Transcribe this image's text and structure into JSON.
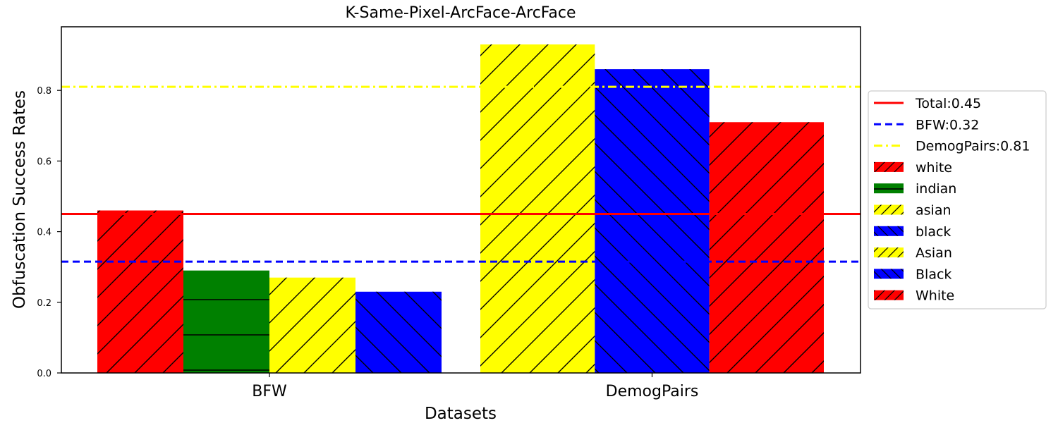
{
  "chart_data": {
    "type": "bar",
    "title": "K-Same-Pixel-ArcFace-ArcFace",
    "xlabel": "Datasets",
    "ylabel": "Obfuscation Success Rates",
    "ylim": [
      0,
      0.98
    ],
    "yticks": [
      "0.0",
      "0.2",
      "0.4",
      "0.6",
      "0.8"
    ],
    "categories": [
      "BFW",
      "DemogPairs"
    ],
    "groups": [
      {
        "category": "BFW",
        "bars": [
          {
            "name": "white",
            "value": 0.46,
            "color": "#ff0000",
            "hatch": "diag-up"
          },
          {
            "name": "indian",
            "value": 0.29,
            "color": "#008000",
            "hatch": "horizontal"
          },
          {
            "name": "asian",
            "value": 0.27,
            "color": "#ffff00",
            "hatch": "diag-up"
          },
          {
            "name": "black",
            "value": 0.23,
            "color": "#0000ff",
            "hatch": "diag-down"
          }
        ]
      },
      {
        "category": "DemogPairs",
        "bars": [
          {
            "name": "Asian",
            "value": 0.93,
            "color": "#ffff00",
            "hatch": "diag-up"
          },
          {
            "name": "Black",
            "value": 0.86,
            "color": "#0000ff",
            "hatch": "diag-down"
          },
          {
            "name": "White",
            "value": 0.71,
            "color": "#ff0000",
            "hatch": "diag-up"
          }
        ]
      }
    ],
    "reference_lines": [
      {
        "label": "Total:0.45",
        "value": 0.45,
        "color": "#ff0000",
        "style": "solid"
      },
      {
        "label": "BFW:0.32",
        "value": 0.315,
        "color": "#0000ff",
        "style": "dashed"
      },
      {
        "label": "DemogPairs:0.81",
        "value": 0.81,
        "color": "#ffff00",
        "style": "dashdot"
      }
    ],
    "legend": {
      "placement": "right",
      "entries": [
        {
          "label": "Total:0.45",
          "kind": "line",
          "color": "#ff0000",
          "style": "solid"
        },
        {
          "label": "BFW:0.32",
          "kind": "line",
          "color": "#0000ff",
          "style": "dashed"
        },
        {
          "label": "DemogPairs:0.81",
          "kind": "line",
          "color": "#ffff00",
          "style": "dashdot"
        },
        {
          "label": "white",
          "kind": "patch",
          "color": "#ff0000",
          "hatch": "diag-up"
        },
        {
          "label": "indian",
          "kind": "patch",
          "color": "#008000",
          "hatch": "horizontal"
        },
        {
          "label": "asian",
          "kind": "patch",
          "color": "#ffff00",
          "hatch": "diag-up"
        },
        {
          "label": "black",
          "kind": "patch",
          "color": "#0000ff",
          "hatch": "diag-down"
        },
        {
          "label": "Asian",
          "kind": "patch",
          "color": "#ffff00",
          "hatch": "diag-up"
        },
        {
          "label": "Black",
          "kind": "patch",
          "color": "#0000ff",
          "hatch": "diag-down"
        },
        {
          "label": "White",
          "kind": "patch",
          "color": "#ff0000",
          "hatch": "diag-up"
        }
      ]
    },
    "grid": false
  }
}
